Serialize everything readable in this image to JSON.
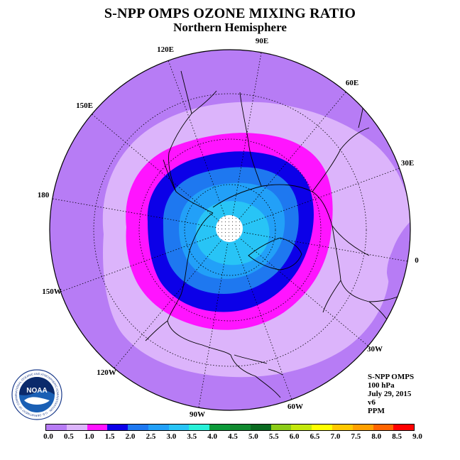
{
  "title": "S-NPP OMPS OZONE MIXING RATIO",
  "subtitle": "Northern Hemisphere",
  "longitude_labels": [
    "90E",
    "60E",
    "30E",
    "0",
    "30W",
    "60W",
    "90W",
    "120W",
    "150W",
    "180",
    "150E",
    "120E"
  ],
  "info": {
    "instrument": "S-NPP OMPS",
    "level": "100 hPa",
    "date": "July 29, 2015",
    "version": "v6",
    "units": "PPM"
  },
  "logo": {
    "text": "NOAA",
    "ring_text": "NATIONAL OCEANIC AND ATMOSPHERIC ADMINISTRATION · U.S. DEPARTMENT OF COMMERCE"
  },
  "colorbar": {
    "ticks": [
      "0.0",
      "0.5",
      "1.0",
      "1.5",
      "2.0",
      "2.5",
      "3.0",
      "3.5",
      "4.0",
      "4.5",
      "5.0",
      "5.5",
      "6.0",
      "6.5",
      "7.0",
      "7.5",
      "8.0",
      "8.5",
      "9.0"
    ],
    "colors": [
      "#b77cf5",
      "#dcb4fb",
      "#ff14ff",
      "#0c00e8",
      "#1e78f0",
      "#22a0f8",
      "#28c4f6",
      "#28f0d8",
      "#0c9a3a",
      "#118a30",
      "#0a6a20",
      "#8ccc18",
      "#c4e80c",
      "#ffff00",
      "#ffc800",
      "#ffa000",
      "#ff6400",
      "#ff0000",
      "#d41414",
      "#8b5a3c"
    ]
  },
  "map_data": {
    "projection": "north polar stereographic",
    "field": "ozone mixing ratio at 100 hPa (ppm)",
    "contour_bands": [
      {
        "range": "0.0-0.5",
        "color": "#b77cf5"
      },
      {
        "range": "0.5-1.0",
        "color": "#dcb4fb"
      },
      {
        "range": "1.0-1.5",
        "color": "#ff14ff"
      },
      {
        "range": "1.5-2.0",
        "color": "#0c00e8"
      },
      {
        "range": "2.0-2.5",
        "color": "#1e78f0"
      },
      {
        "range": "2.5-3.0",
        "color": "#22a0f8"
      },
      {
        "range": "3.0-3.5",
        "color": "#28c4f6"
      }
    ],
    "missing_data": "polar cap (white, stippled)"
  }
}
